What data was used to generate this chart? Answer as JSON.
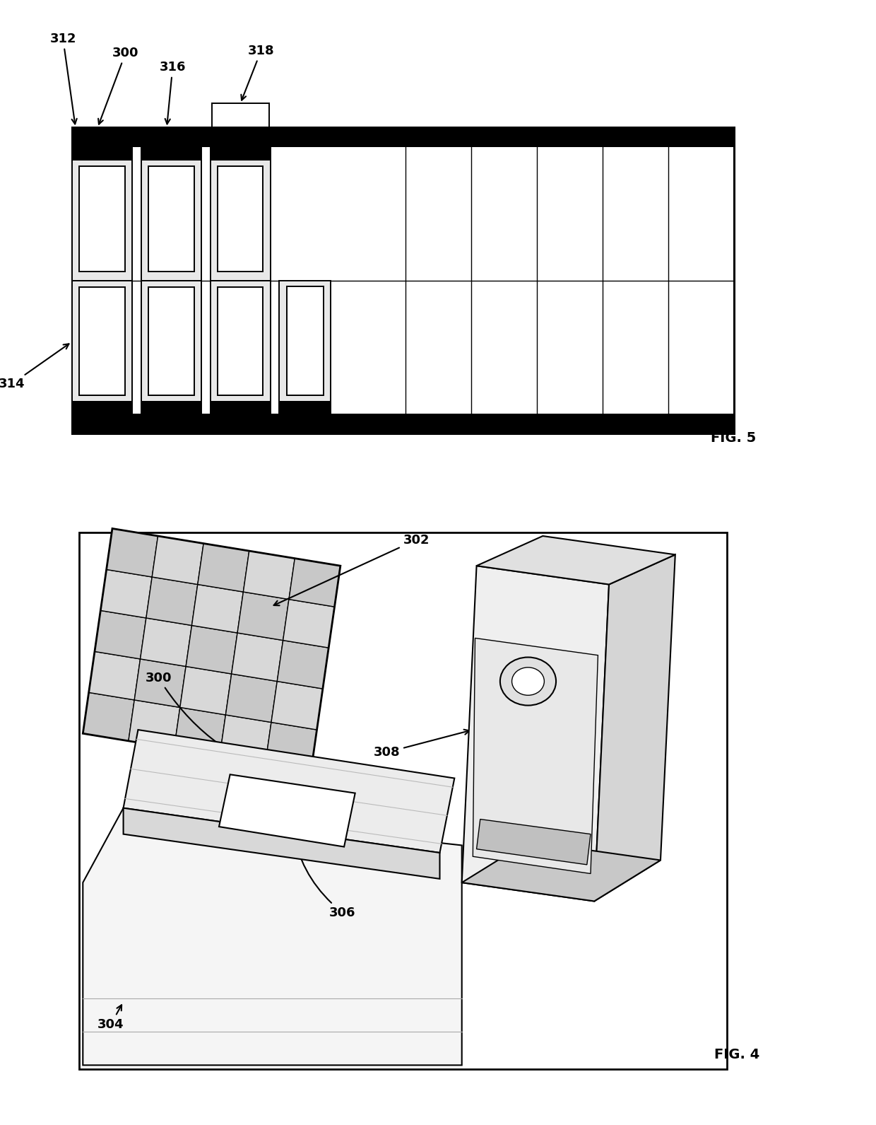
{
  "background": "#ffffff",
  "line_color": "#000000",
  "gray_light": "#e8e8e8",
  "gray_mid": "#cccccc",
  "gray_dark": "#aaaaaa",
  "fig5_label": "FIG. 5",
  "fig4_label": "FIG. 4",
  "ann_fs": 13
}
